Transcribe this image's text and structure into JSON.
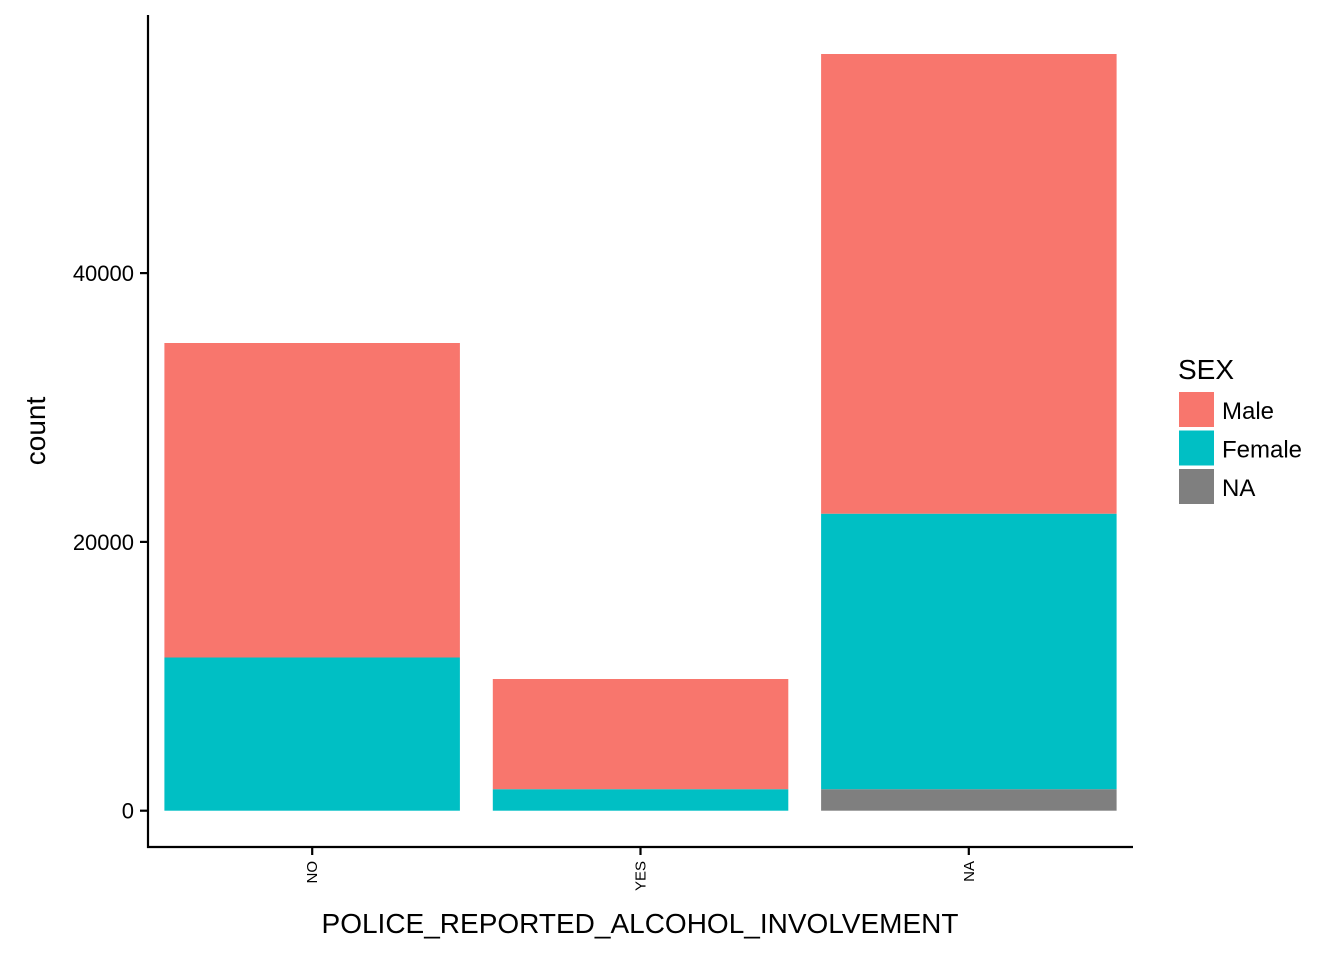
{
  "chart_data": {
    "type": "bar",
    "stacked": true,
    "categories": [
      "NO",
      "YES",
      "NA"
    ],
    "series": [
      {
        "name": "NA",
        "color": "#7f7f7f",
        "values": [
          0,
          0,
          1600
        ]
      },
      {
        "name": "Female",
        "color": "#00bfc4",
        "values": [
          11400,
          1600,
          20500
        ]
      },
      {
        "name": "Male",
        "color": "#f8766d",
        "values": [
          23400,
          8200,
          34200
        ]
      }
    ],
    "totals": [
      34800,
      9800,
      56300
    ],
    "xlabel": "POLICE_REPORTED_ALCOHOL_INVOLVEMENT",
    "ylabel": "count",
    "yticks": [
      0,
      20000,
      40000
    ],
    "ylim": [
      -2700,
      59200
    ],
    "grid": false,
    "legend": {
      "title": "SEX",
      "position": "right",
      "entries": [
        {
          "label": "Male",
          "color": "#f8766d"
        },
        {
          "label": "Female",
          "color": "#00bfc4"
        },
        {
          "label": "NA",
          "color": "#7f7f7f"
        }
      ]
    }
  }
}
